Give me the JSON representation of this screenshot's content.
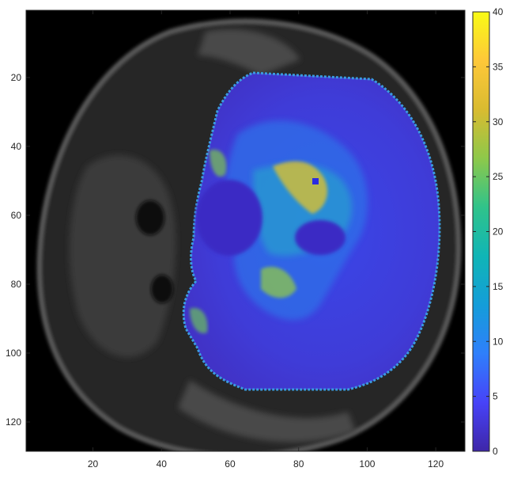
{
  "image": {
    "background_color": "#000000",
    "colormap": "parula",
    "colormap_stops": [
      "#3e26a8",
      "#4743f8",
      "#2f7ffb",
      "#149dd9",
      "#10b5b6",
      "#30c38a",
      "#8ec84a",
      "#d9bb30",
      "#fec839",
      "#f9fb15"
    ]
  },
  "x_axis": {
    "range": [
      0.5,
      128.5
    ],
    "ticks": [
      {
        "value": 20,
        "label": "20"
      },
      {
        "value": 40,
        "label": "40"
      },
      {
        "value": 60,
        "label": "60"
      },
      {
        "value": 80,
        "label": "80"
      },
      {
        "value": 100,
        "label": "100"
      },
      {
        "value": 120,
        "label": "120"
      }
    ]
  },
  "y_axis": {
    "range": [
      0.5,
      128.5
    ],
    "reversed": true,
    "ticks": [
      {
        "value": 20,
        "label": "20"
      },
      {
        "value": 40,
        "label": "40"
      },
      {
        "value": 60,
        "label": "60"
      },
      {
        "value": 80,
        "label": "80"
      },
      {
        "value": 100,
        "label": "100"
      },
      {
        "value": 120,
        "label": "120"
      }
    ]
  },
  "colorbar": {
    "range": [
      0,
      40
    ],
    "ticks": [
      {
        "value": 0,
        "label": "0"
      },
      {
        "value": 5,
        "label": "5"
      },
      {
        "value": 10,
        "label": "10"
      },
      {
        "value": 15,
        "label": "15"
      },
      {
        "value": 20,
        "label": "20"
      },
      {
        "value": 25,
        "label": "25"
      },
      {
        "value": 30,
        "label": "30"
      },
      {
        "value": 35,
        "label": "35"
      },
      {
        "value": 40,
        "label": "40"
      }
    ]
  }
}
